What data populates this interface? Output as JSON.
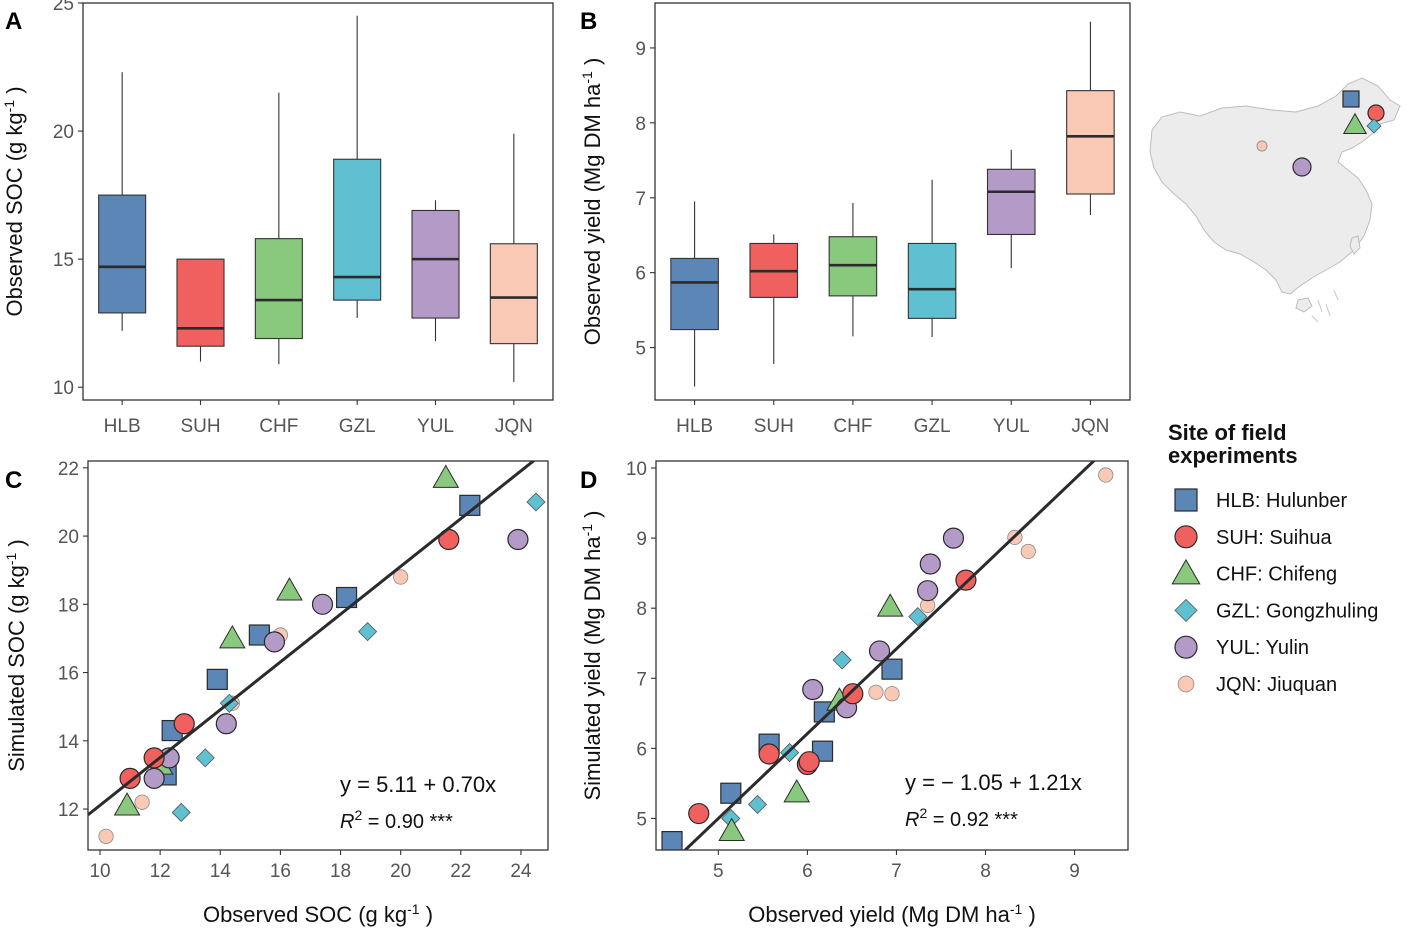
{
  "chart_data": [
    {
      "panel": "A",
      "type": "box",
      "xlabel": "",
      "ylabel": "Observed SOC (g kg",
      "ylabel_sup": "-1",
      "ylabel_tail": " )",
      "ylim": [
        9.5,
        25
      ],
      "yticks": [
        10,
        15,
        20,
        25
      ],
      "categories": [
        "HLB",
        "SUH",
        "CHF",
        "GZL",
        "YUL",
        "JQN"
      ],
      "boxes": [
        {
          "site": "HLB",
          "min": 12.2,
          "q1": 12.9,
          "median": 14.7,
          "q3": 17.5,
          "max": 22.3
        },
        {
          "site": "SUH",
          "min": 11.0,
          "q1": 11.6,
          "median": 12.3,
          "q3": 15.0,
          "max": 15.0
        },
        {
          "site": "CHF",
          "min": 10.9,
          "q1": 11.9,
          "median": 13.4,
          "q3": 15.8,
          "max": 21.5
        },
        {
          "site": "GZL",
          "min": 12.7,
          "q1": 13.4,
          "median": 14.3,
          "q3": 18.9,
          "max": 24.5
        },
        {
          "site": "YUL",
          "min": 11.8,
          "q1": 12.7,
          "median": 15.0,
          "q3": 16.9,
          "max": 17.3
        },
        {
          "site": "JQN",
          "min": 10.2,
          "q1": 11.7,
          "median": 13.5,
          "q3": 15.6,
          "max": 19.9
        }
      ]
    },
    {
      "panel": "B",
      "type": "box",
      "xlabel": "",
      "ylabel": "Observed yield (Mg DM ha",
      "ylabel_sup": "-1",
      "ylabel_tail": " )",
      "ylim": [
        4.3,
        9.6
      ],
      "yticks": [
        5,
        6,
        7,
        8,
        9
      ],
      "categories": [
        "HLB",
        "SUH",
        "CHF",
        "GZL",
        "YUL",
        "JQN"
      ],
      "boxes": [
        {
          "site": "HLB",
          "min": 4.48,
          "q1": 5.24,
          "median": 5.87,
          "q3": 6.19,
          "max": 6.95
        },
        {
          "site": "SUH",
          "min": 4.78,
          "q1": 5.67,
          "median": 6.02,
          "q3": 6.39,
          "max": 6.51
        },
        {
          "site": "CHF",
          "min": 5.15,
          "q1": 5.69,
          "median": 6.1,
          "q3": 6.48,
          "max": 6.93
        },
        {
          "site": "GZL",
          "min": 5.14,
          "q1": 5.39,
          "median": 5.78,
          "q3": 6.39,
          "max": 7.24
        },
        {
          "site": "YUL",
          "min": 6.06,
          "q1": 6.51,
          "median": 7.08,
          "q3": 7.38,
          "max": 7.64
        },
        {
          "site": "JQN",
          "min": 6.77,
          "q1": 7.05,
          "median": 7.82,
          "q3": 8.43,
          "max": 9.35
        }
      ]
    },
    {
      "panel": "C",
      "type": "scatter",
      "xlabel": "Observed SOC (g kg",
      "xlabel_sup": "-1",
      "xlabel_tail": " )",
      "ylabel": "Simulated SOC (g kg",
      "ylabel_sup": "-1",
      "ylabel_tail": " )",
      "xlim": [
        9.6,
        24.9
      ],
      "ylim": [
        10.8,
        22.2
      ],
      "xticks": [
        10,
        12,
        14,
        16,
        18,
        20,
        22,
        24
      ],
      "yticks": [
        12,
        14,
        16,
        18,
        20,
        22
      ],
      "fit": {
        "intercept": 5.11,
        "slope": 0.7
      },
      "equation": "y = 5.11 + 0.70x",
      "r2_label": "R",
      "r2_sup": "2",
      "r2_value": " = 0.90 ***",
      "series": [
        {
          "site": "HLB",
          "points": [
            [
              12.4,
              14.3
            ],
            [
              12.2,
              13.0
            ],
            [
              13.9,
              15.8
            ],
            [
              15.3,
              17.1
            ],
            [
              18.2,
              18.2
            ],
            [
              22.3,
              20.9
            ]
          ]
        },
        {
          "site": "SUH",
          "points": [
            [
              11.0,
              12.9
            ],
            [
              11.8,
              13.5
            ],
            [
              12.8,
              14.5
            ],
            [
              21.6,
              19.9
            ]
          ]
        },
        {
          "site": "CHF",
          "points": [
            [
              10.9,
              12.1
            ],
            [
              12.0,
              13.3
            ],
            [
              14.4,
              17.0
            ],
            [
              16.3,
              18.4
            ],
            [
              21.5,
              21.7
            ]
          ]
        },
        {
          "site": "GZL",
          "points": [
            [
              12.7,
              11.9
            ],
            [
              13.5,
              13.5
            ],
            [
              14.3,
              15.1
            ],
            [
              18.9,
              17.2
            ],
            [
              24.5,
              21.0
            ]
          ]
        },
        {
          "site": "YUL",
          "points": [
            [
              11.8,
              12.9
            ],
            [
              12.3,
              13.5
            ],
            [
              14.2,
              14.5
            ],
            [
              15.8,
              16.9
            ],
            [
              17.4,
              18.0
            ],
            [
              23.9,
              19.9
            ]
          ]
        },
        {
          "site": "JQN",
          "points": [
            [
              10.2,
              11.2
            ],
            [
              11.4,
              12.2
            ],
            [
              14.4,
              15.1
            ],
            [
              16.0,
              17.1
            ],
            [
              20.0,
              18.8
            ]
          ]
        }
      ]
    },
    {
      "panel": "D",
      "type": "scatter",
      "xlabel": "Observed yield (Mg DM ha",
      "xlabel_sup": "-1",
      "xlabel_tail": " )",
      "ylabel": "Simulated yield (Mg DM ha",
      "ylabel_sup": "-1",
      "ylabel_tail": " )",
      "xlim": [
        4.3,
        9.6
      ],
      "ylim": [
        4.55,
        10.1
      ],
      "xticks": [
        5,
        6,
        7,
        8,
        9
      ],
      "yticks": [
        5,
        6,
        7,
        8,
        9,
        10
      ],
      "fit": {
        "intercept": -1.05,
        "slope": 1.21
      },
      "equation": "y = − 1.05 + 1.21x",
      "r2_label": "R",
      "r2_sup": "2",
      "r2_value": " = 0.92 ***",
      "series": [
        {
          "site": "HLB",
          "points": [
            [
              4.48,
              4.67
            ],
            [
              5.14,
              5.36
            ],
            [
              5.57,
              6.06
            ],
            [
              6.17,
              5.96
            ],
            [
              6.19,
              6.52
            ],
            [
              6.95,
              7.13
            ]
          ]
        },
        {
          "site": "SUH",
          "points": [
            [
              4.78,
              5.07
            ],
            [
              5.57,
              5.92
            ],
            [
              6.0,
              5.77
            ],
            [
              6.02,
              5.81
            ],
            [
              6.51,
              6.78
            ],
            [
              7.78,
              8.4
            ]
          ]
        },
        {
          "site": "CHF",
          "points": [
            [
              5.15,
              4.82
            ],
            [
              5.88,
              5.37
            ],
            [
              6.36,
              6.68
            ],
            [
              6.93,
              8.02
            ]
          ]
        },
        {
          "site": "GZL",
          "points": [
            [
              5.14,
              5.0
            ],
            [
              5.44,
              5.2
            ],
            [
              5.8,
              5.94
            ],
            [
              6.39,
              7.26
            ],
            [
              7.24,
              7.88
            ]
          ]
        },
        {
          "site": "YUL",
          "points": [
            [
              6.06,
              6.84
            ],
            [
              6.44,
              6.58
            ],
            [
              6.81,
              7.39
            ],
            [
              7.35,
              8.25
            ],
            [
              7.38,
              8.63
            ],
            [
              7.64,
              9.0
            ]
          ]
        },
        {
          "site": "JQN",
          "points": [
            [
              6.77,
              6.8
            ],
            [
              6.95,
              6.78
            ],
            [
              7.35,
              8.04
            ],
            [
              8.33,
              9.01
            ],
            [
              8.48,
              8.81
            ],
            [
              9.35,
              9.9
            ]
          ]
        }
      ]
    }
  ],
  "panel_tags": [
    "A",
    "B",
    "C",
    "D"
  ],
  "legend": {
    "title_line1": "Site of field",
    "title_line2": "experiments",
    "items": [
      {
        "site": "HLB",
        "label": "HLB: Hulunber",
        "shape": "square",
        "color": "#5b86b6"
      },
      {
        "site": "SUH",
        "label": "SUH: Suihua",
        "shape": "circle",
        "color": "#f0605f"
      },
      {
        "site": "CHF",
        "label": "CHF: Chifeng",
        "shape": "triangle",
        "color": "#88c97d"
      },
      {
        "site": "GZL",
        "label": "GZL: Gongzhuling",
        "shape": "diamond",
        "color": "#5fc0d1"
      },
      {
        "site": "YUL",
        "label": "YUL: Yulin",
        "shape": "circle",
        "color": "#b39ac7"
      },
      {
        "site": "JQN",
        "label": "JQN: Jiuquan",
        "shape": "circle-small",
        "color": "#f9c9b6"
      }
    ]
  },
  "map": {
    "map_color": "#ececec",
    "marker_sites": [
      "HLB",
      "SUH",
      "CHF",
      "GZL",
      "JQN",
      "YUL"
    ]
  },
  "colors": {
    "HLB": "#5b86b6",
    "SUH": "#f0605f",
    "CHF": "#88c97d",
    "GZL": "#5fc0d1",
    "YUL": "#b39ac7",
    "JQN": "#f9c9b6",
    "fit_line": "#2b2b2b",
    "frame": "#333333"
  }
}
